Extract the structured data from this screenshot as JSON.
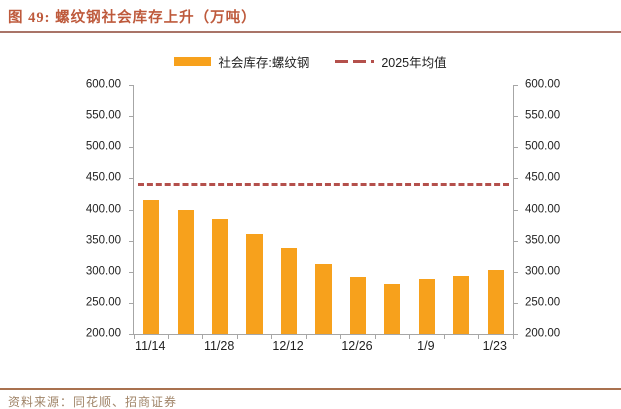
{
  "title": {
    "text": "图 49: 螺纹钢社会库存上升（万吨）"
  },
  "legend": [
    {
      "label": "社会库存:螺纹钢",
      "swatch": "bar-swatch",
      "color": "#f7a11c"
    },
    {
      "label": "2025年均值",
      "swatch": "dash-dot-line-swatch",
      "color": "#b4504c"
    }
  ],
  "footer": {
    "text": "资料来源：同花顺、招商证券"
  },
  "chart_data": {
    "type": "bar",
    "title": "螺纹钢社会库存上升（万吨）",
    "series": [
      {
        "name": "社会库存:螺纹钢",
        "type": "bar",
        "color": "#f7a11c",
        "values": [
          415,
          400,
          384,
          360,
          338,
          312,
          292,
          281,
          289,
          294,
          303
        ]
      },
      {
        "name": "2025年均值",
        "type": "dashed-line",
        "color": "#b4504c",
        "value": 440
      }
    ],
    "bar_count": 11,
    "x_tick_labels": [
      "11/14",
      "11/28",
      "12/12",
      "12/26",
      "1/9",
      "1/23"
    ],
    "x_label_slots": [
      0,
      2,
      4,
      6,
      8,
      10
    ],
    "ylim": [
      200,
      600
    ],
    "y_tick_labels": [
      "600.00",
      "550.00",
      "500.00",
      "450.00",
      "400.00",
      "350.00",
      "300.00",
      "250.00",
      "200.00"
    ],
    "dual_axis": true,
    "grid": false,
    "legend_position": "top-center"
  },
  "colors": {
    "title_text": "#be5a3c",
    "title_rule": "#a97468",
    "footer_rule": "#a9714f",
    "footer_text": "#a08468",
    "bar": "#f7a11c",
    "avg_line": "#b4504c",
    "axis": "#a6a6a6",
    "tick_label": "#1f1f1f",
    "background": "#ffffff"
  }
}
